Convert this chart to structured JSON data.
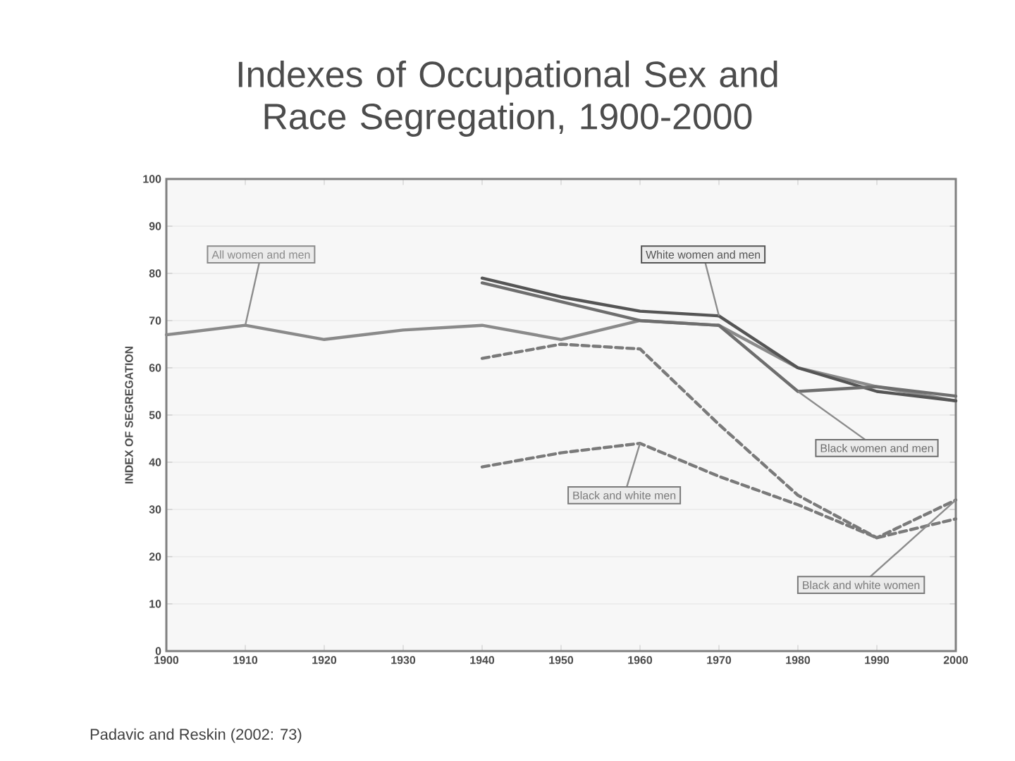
{
  "chart_data": {
    "type": "line",
    "title": "Indexes of Occupational Sex and Race Segregation, 1900-2000",
    "ylabel": "INDEX OF SEGREGATION",
    "x": [
      1900,
      1910,
      1920,
      1930,
      1940,
      1950,
      1960,
      1970,
      1980,
      1990,
      2000
    ],
    "xlim": [
      1900,
      2000
    ],
    "xticks": [
      1900,
      1910,
      1920,
      1930,
      1940,
      1950,
      1960,
      1970,
      1980,
      1990,
      2000
    ],
    "ylim": [
      0,
      100
    ],
    "yticks": [
      0,
      10,
      20,
      30,
      40,
      50,
      60,
      70,
      80,
      90,
      100
    ],
    "grid": "y",
    "marker": "none",
    "series": [
      {
        "name": "All women and men",
        "color": "#8a8a8a",
        "line_style": "solid",
        "values": [
          67,
          69,
          66,
          68,
          69,
          66,
          70,
          69,
          60,
          56,
          53
        ]
      },
      {
        "name": "White women and men",
        "color": "#555555",
        "line_style": "solid",
        "values": [
          null,
          null,
          null,
          null,
          79,
          75,
          72,
          71,
          60,
          55,
          53
        ]
      },
      {
        "name": "Black women and men",
        "color": "#6e6e6e",
        "line_style": "solid",
        "values": [
          null,
          null,
          null,
          null,
          78,
          74,
          70,
          69,
          55,
          56,
          54
        ]
      },
      {
        "name": "Black and white women",
        "color": "#7a7a7a",
        "line_style": "dashed",
        "values": [
          null,
          null,
          null,
          null,
          62,
          65,
          64,
          48,
          33,
          24,
          32
        ]
      },
      {
        "name": "Black and white men",
        "color": "#7a7a7a",
        "line_style": "dashed",
        "values": [
          null,
          null,
          null,
          null,
          39,
          42,
          44,
          37,
          31,
          24,
          28
        ]
      }
    ],
    "annotations": [
      "Padavic and Reskin (2002: 73)"
    ]
  }
}
